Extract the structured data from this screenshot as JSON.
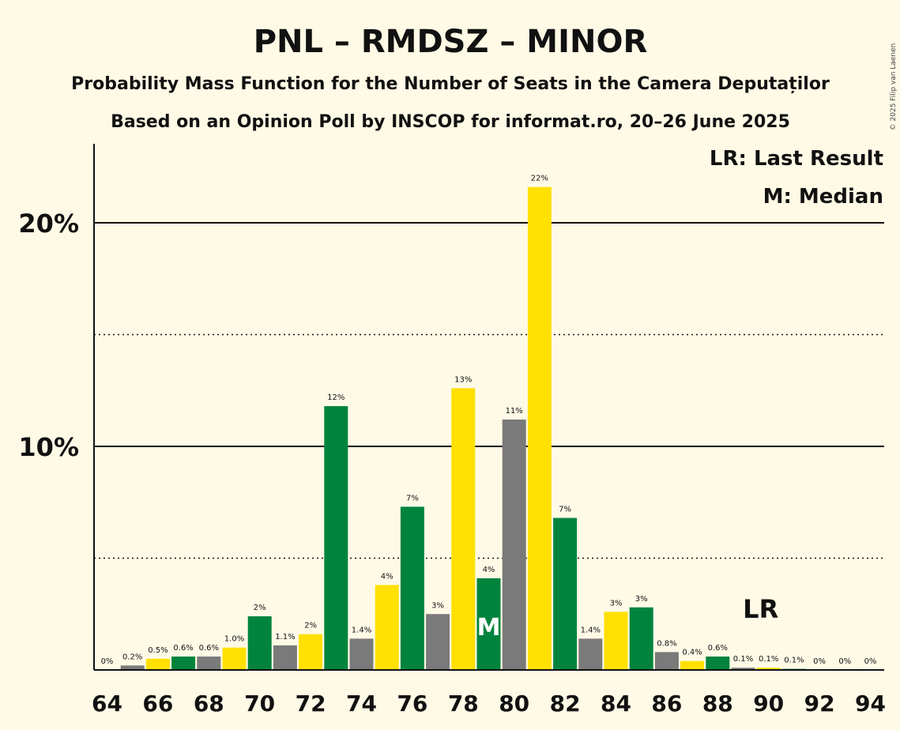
{
  "chart_data": {
    "type": "bar",
    "title": "PNL – RMDSZ – MINOR",
    "subtitle_line1": "Probability Mass Function for the Number of Seats in the Camera Deputaților",
    "subtitle_line2": "Based on an Opinion Poll by INSCOP for informat.ro, 20–26 June 2025",
    "copyright": "© 2025 Filip van Laenen",
    "legend": {
      "lr": "LR: Last Result",
      "m": "M: Median"
    },
    "median_marker": "M",
    "lr_marker": "LR",
    "median_seat": 79,
    "last_result_seat": 90,
    "ylim": [
      0,
      23.5
    ],
    "y_ticks": [
      {
        "value": 10,
        "label": "10%"
      },
      {
        "value": 20,
        "label": "20%"
      }
    ],
    "y_dotted": [
      5,
      15
    ],
    "x_tick_labels": [
      "64",
      "66",
      "68",
      "70",
      "72",
      "74",
      "76",
      "78",
      "80",
      "82",
      "84",
      "86",
      "88",
      "90",
      "92",
      "94"
    ],
    "colors": {
      "green": "#00843d",
      "gray": "#7a7a7a",
      "yellow": "#ffe000",
      "background": "#fffae6"
    },
    "bars": [
      {
        "seat": 64,
        "value": 0.0,
        "label": "0%",
        "color": "gray"
      },
      {
        "seat": 65,
        "value": 0.2,
        "label": "0.2%",
        "color": "gray"
      },
      {
        "seat": 66,
        "value": 0.5,
        "label": "0.5%",
        "color": "yellow"
      },
      {
        "seat": 67,
        "value": 0.6,
        "label": "0.6%",
        "color": "green"
      },
      {
        "seat": 68,
        "value": 0.6,
        "label": "0.6%",
        "color": "gray"
      },
      {
        "seat": 69,
        "value": 1.0,
        "label": "1.0%",
        "color": "yellow"
      },
      {
        "seat": 70,
        "value": 2.4,
        "label": "2%",
        "color": "green"
      },
      {
        "seat": 71,
        "value": 1.1,
        "label": "1.1%",
        "color": "gray"
      },
      {
        "seat": 72,
        "value": 1.6,
        "label": "2%",
        "color": "yellow"
      },
      {
        "seat": 73,
        "value": 11.8,
        "label": "12%",
        "color": "green"
      },
      {
        "seat": 74,
        "value": 1.4,
        "label": "1.4%",
        "color": "gray"
      },
      {
        "seat": 75,
        "value": 3.8,
        "label": "4%",
        "color": "yellow"
      },
      {
        "seat": 76,
        "value": 7.3,
        "label": "7%",
        "color": "green"
      },
      {
        "seat": 77,
        "value": 2.5,
        "label": "3%",
        "color": "gray"
      },
      {
        "seat": 78,
        "value": 12.6,
        "label": "13%",
        "color": "yellow"
      },
      {
        "seat": 79,
        "value": 4.1,
        "label": "4%",
        "color": "green"
      },
      {
        "seat": 80,
        "value": 11.2,
        "label": "11%",
        "color": "gray"
      },
      {
        "seat": 81,
        "value": 21.6,
        "label": "22%",
        "color": "yellow"
      },
      {
        "seat": 82,
        "value": 6.8,
        "label": "7%",
        "color": "green"
      },
      {
        "seat": 83,
        "value": 1.4,
        "label": "1.4%",
        "color": "gray"
      },
      {
        "seat": 84,
        "value": 2.6,
        "label": "3%",
        "color": "yellow"
      },
      {
        "seat": 85,
        "value": 2.8,
        "label": "3%",
        "color": "green"
      },
      {
        "seat": 86,
        "value": 0.8,
        "label": "0.8%",
        "color": "gray"
      },
      {
        "seat": 87,
        "value": 0.4,
        "label": "0.4%",
        "color": "yellow"
      },
      {
        "seat": 88,
        "value": 0.6,
        "label": "0.6%",
        "color": "green"
      },
      {
        "seat": 89,
        "value": 0.1,
        "label": "0.1%",
        "color": "gray"
      },
      {
        "seat": 90,
        "value": 0.1,
        "label": "0.1%",
        "color": "yellow"
      },
      {
        "seat": 91,
        "value": 0.05,
        "label": "0.1%",
        "color": "green"
      },
      {
        "seat": 92,
        "value": 0.0,
        "label": "0%",
        "color": "gray"
      },
      {
        "seat": 93,
        "value": 0.0,
        "label": "0%",
        "color": "yellow"
      },
      {
        "seat": 94,
        "value": 0.0,
        "label": "0%",
        "color": "green"
      }
    ]
  }
}
